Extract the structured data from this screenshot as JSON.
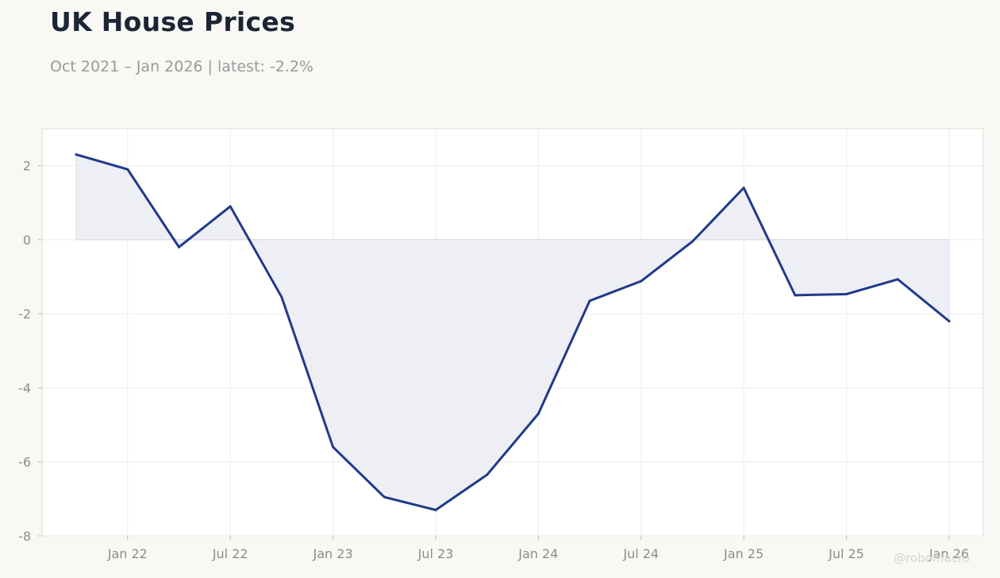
{
  "header": {
    "title": "UK House Prices",
    "subtitle": "Oct 2021 – Jan 2026 | latest: -2.2%"
  },
  "watermark": "@robomacro",
  "colors": {
    "line": "#1f3a8a",
    "fill": "#eeeef5",
    "zero_line": "#d9dbe8",
    "grid": "#ececec",
    "tick_text": "#8c8c8c",
    "plot_bg": "#ffffff",
    "page_bg": "#f9f8f5"
  },
  "chart_data": {
    "type": "area",
    "title": "UK House Prices",
    "subtitle": "Oct 2021 – Jan 2026 | latest: -2.2%",
    "xlabel": "",
    "ylabel": "",
    "ylim": [
      -8,
      3
    ],
    "xlim": [
      "2021-08",
      "2026-03"
    ],
    "yticks": [
      2,
      0,
      -2,
      -4,
      -6,
      -8
    ],
    "ytick_labels": [
      "2",
      "0",
      "-2",
      "-4",
      "-6",
      "-8"
    ],
    "xticks": [
      "2022-01",
      "2022-07",
      "2023-01",
      "2023-07",
      "2024-01",
      "2024-07",
      "2025-01",
      "2025-07",
      "2026-01"
    ],
    "xtick_labels": [
      "Jan 22",
      "Jul 22",
      "Jan 23",
      "Jul 23",
      "Jan 24",
      "Jul 24",
      "Jan 25",
      "Jul 25",
      "Jan 26"
    ],
    "grid": true,
    "legend": "none",
    "series": [
      {
        "x": [
          "2021-10",
          "2022-01",
          "2022-04",
          "2022-07",
          "2022-10",
          "2023-01",
          "2023-04",
          "2023-07",
          "2023-10",
          "2024-01",
          "2024-04",
          "2024-07",
          "2024-10",
          "2025-01",
          "2025-04",
          "2025-07",
          "2025-10",
          "2026-01"
        ],
        "values": [
          2.3,
          1.9,
          -0.2,
          0.9,
          -1.55,
          -5.6,
          -6.95,
          -7.3,
          -6.35,
          -4.7,
          -1.65,
          -1.12,
          -0.05,
          1.4,
          -1.5,
          -1.47,
          -1.07,
          -2.2
        ]
      }
    ]
  }
}
